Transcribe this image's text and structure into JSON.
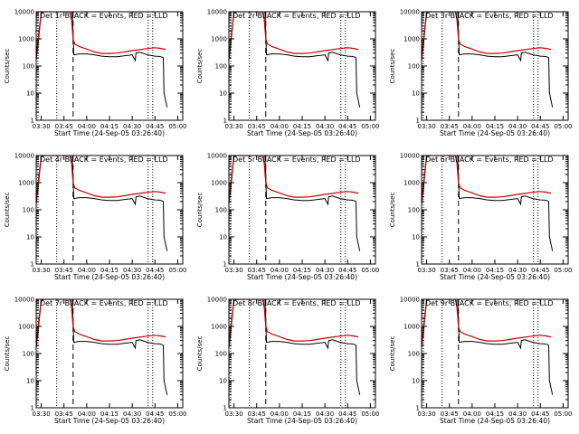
{
  "chart_data": [
    {
      "type": "line",
      "title": "Det 1r BLACK = Events, RED = LLD"
    },
    {
      "type": "line",
      "title": "Det 2r BLACK = Events, RED = LLD"
    },
    {
      "type": "line",
      "title": "Det 3r BLACK = Events, RED = LLD"
    },
    {
      "type": "line",
      "title": "Det 4r BLACK = Events, RED = LLD"
    },
    {
      "type": "line",
      "title": "Det 5r BLACK = Events, RED = LLD"
    },
    {
      "type": "line",
      "title": "Det 6r BLACK = Events, RED = LLD"
    },
    {
      "type": "line",
      "title": "Det 7r BLACK = Events, RED = LLD"
    },
    {
      "type": "line",
      "title": "Det 8r BLACK = Events, RED = LLD"
    },
    {
      "type": "line",
      "title": "Det 9r BLACK = Events, RED = LLD"
    }
  ],
  "shared": {
    "xlabel": "Start Time (24-Sep-05 03:26:40)",
    "ylabel": "Counts/sec",
    "x_ticks": [
      "03:30",
      "03:45",
      "04:00",
      "04:15",
      "04:30",
      "04:45",
      "05:00"
    ],
    "x_tick_minutes": [
      0,
      15,
      30,
      45,
      60,
      75,
      90
    ],
    "xlim_minutes": [
      -3.33,
      93.33
    ],
    "y_scale": "log",
    "ylim": [
      1,
      10000
    ],
    "y_ticks": [
      "1",
      "10",
      "100",
      "1000",
      "10000"
    ],
    "dotted_lines_minutes": [
      -2.2,
      10.2,
      70.5,
      73.5
    ],
    "dashed_line_minutes": 21,
    "colors": {
      "events": "#000000",
      "lld": "#cc0000"
    },
    "events_series_x": [
      -3.33,
      -2.5,
      0,
      2,
      4,
      6,
      8,
      9,
      10,
      12,
      14,
      17,
      19,
      20.5,
      21.5,
      25,
      30,
      35,
      40,
      45,
      50,
      55,
      60,
      62,
      62.5,
      65,
      70,
      75,
      78,
      80,
      80.5,
      81,
      83
    ],
    "events_series_y": [
      160,
      400,
      9000,
      10000,
      10000,
      10000,
      10000,
      10000,
      10000,
      10000,
      10000,
      10000,
      10000,
      10000,
      260,
      280,
      280,
      260,
      230,
      220,
      220,
      240,
      260,
      160,
      300,
      320,
      260,
      230,
      225,
      210,
      200,
      10,
      3
    ],
    "lld_series_x": [
      -3.33,
      -2.5,
      0,
      2,
      4,
      6,
      8,
      10,
      12,
      14,
      17,
      19,
      20,
      21,
      22,
      25,
      30,
      35,
      40,
      45,
      50,
      55,
      60,
      65,
      70,
      75,
      78,
      80,
      82
    ],
    "lld_series_y": [
      180,
      600,
      9500,
      10000,
      10000,
      10000,
      10000,
      10000,
      10000,
      10000,
      10000,
      10000,
      5000,
      1000,
      650,
      520,
      420,
      330,
      290,
      290,
      300,
      330,
      370,
      400,
      440,
      470,
      450,
      430,
      410
    ]
  }
}
